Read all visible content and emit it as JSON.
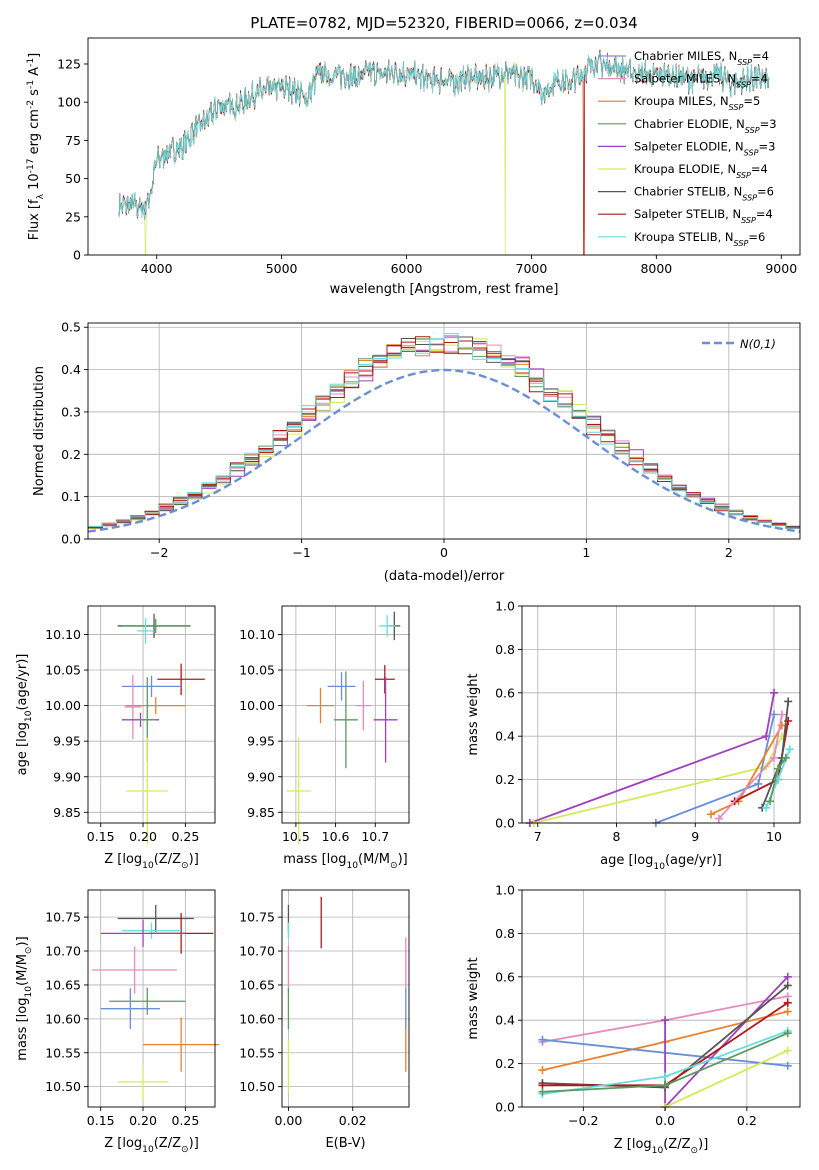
{
  "colors": {
    "c1": "#6a8fd8",
    "c2": "#e8822c",
    "c3": "#5a9a63",
    "c4": "#a03fbf",
    "c5": "#e889c0",
    "c6": "#555555",
    "c7": "#d4ea5c",
    "c8": "#66dede",
    "c9": "#b01818",
    "spec_Chabrier_MILES": "#9e7fd0",
    "spec_Salpeter_MILES": "#e889c0",
    "spec_Kroupa_MILES": "#e07c28",
    "spec_Chabrier_ELODIE": "#5a9a63",
    "spec_Salpeter_ELODIE": "#a03fbf",
    "spec_Kroupa_ELODIE": "#d4ea5c",
    "spec_Chabrier_STELIB": "#555555",
    "spec_Salpeter_STELIB": "#b01818",
    "spec_Kroupa_STELIB": "#66dede",
    "normal_curve": "#6a8fd8"
  },
  "chart_data": [
    {
      "id": "spectrum",
      "type": "line",
      "title": "PLATE=0782, MJD=52320, FIBERID=0066, z=0.034",
      "xlabel": "wavelength [Angstrom, rest frame]",
      "ylabel": "Flux [f$_\\lambda 10^{-17}$ erg cm$^{-2}$ s$^{-1}$ A$^{-1}$]",
      "xlim": [
        3450,
        9150
      ],
      "ylim": [
        0,
        142
      ],
      "xticks": [
        "4000",
        "5000",
        "6000",
        "7000",
        "8000",
        "9000"
      ],
      "yticks": [
        "0",
        "25",
        "50",
        "75",
        "100",
        "125"
      ],
      "grid": false,
      "legend_position": "top-right",
      "x": [
        3700,
        3800,
        3900,
        3950,
        4000,
        4100,
        4200,
        4300,
        4400,
        4500,
        4600,
        4700,
        4800,
        4900,
        5000,
        5100,
        5200,
        5300,
        5400,
        5500,
        5600,
        5700,
        5800,
        5900,
        6000,
        6100,
        6200,
        6300,
        6400,
        6500,
        6600,
        6700,
        6800,
        6900,
        7000,
        7100,
        7200,
        7300,
        7400,
        7500,
        7600,
        7700,
        7800,
        7900,
        8000,
        8100,
        8200,
        8300,
        8400,
        8500,
        8600,
        8700,
        8800,
        8900
      ],
      "y": [
        32,
        33,
        30,
        40,
        62,
        68,
        70,
        82,
        88,
        98,
        97,
        100,
        106,
        108,
        110,
        108,
        102,
        120,
        117,
        118,
        116,
        120,
        118,
        120,
        118,
        117,
        114,
        115,
        113,
        117,
        115,
        117,
        120,
        116,
        117,
        105,
        115,
        112,
        118,
        126,
        124,
        122,
        120,
        118,
        117,
        118,
        116,
        115,
        117,
        118,
        112,
        114,
        116,
        114
      ],
      "series": [
        {
          "name": "Chabrier MILES, N$_{SSP}$=4",
          "color_key": "spec_Chabrier_MILES"
        },
        {
          "name": "Salpeter MILES, N$_{SSP}$=4",
          "color_key": "spec_Salpeter_MILES"
        },
        {
          "name": "Kroupa MILES, N$_{SSP}$=5",
          "color_key": "spec_Kroupa_MILES"
        },
        {
          "name": "Chabrier ELODIE, N$_{SSP}$=3",
          "color_key": "spec_Chabrier_ELODIE"
        },
        {
          "name": "Salpeter ELODIE, N$_{SSP}$=3",
          "color_key": "spec_Salpeter_ELODIE"
        },
        {
          "name": "Kroupa ELODIE, N$_{SSP}$=4",
          "color_key": "spec_Kroupa_ELODIE"
        },
        {
          "name": "Chabrier STELIB, N$_{SSP}$=6",
          "color_key": "spec_Chabrier_STELIB"
        },
        {
          "name": "Salpeter STELIB, N$_{SSP}$=4",
          "color_key": "spec_Salpeter_STELIB"
        },
        {
          "name": "Kroupa STELIB, N$_{SSP}$=6",
          "color_key": "spec_Kroupa_STELIB"
        }
      ],
      "dropouts": [
        {
          "series": "Kroupa ELODIE, N$_{SSP}$=4",
          "x": 3910
        },
        {
          "series": "Kroupa ELODIE, N$_{SSP}$=4",
          "x": 6790
        },
        {
          "series": "Kroupa MILES, N$_{SSP}$=5",
          "x": 7420
        },
        {
          "series": "Salpeter STELIB, N$_{SSP}$=4",
          "x": 7420
        }
      ]
    },
    {
      "id": "residuals",
      "type": "line",
      "xlabel": "(data-model)/error",
      "ylabel": "Normed distribution",
      "xlim": [
        -2.5,
        2.5
      ],
      "ylim": [
        0,
        0.51
      ],
      "xticks": [
        "−2",
        "−1",
        "0",
        "1",
        "2"
      ],
      "yticks": [
        "0.0",
        "0.1",
        "0.2",
        "0.3",
        "0.4",
        "0.5"
      ],
      "grid": true,
      "legend_position": "top-right",
      "bin_width": 0.1,
      "series": [
        {
          "name": "$\\mathcal{N}(0,1)$",
          "style": "dashed",
          "color_key": "normal_curve"
        }
      ]
    },
    {
      "id": "z_vs_age",
      "type": "scatter",
      "xlabel": "Z [log$_{10}$(Z/Z$_\\odot$)]",
      "ylabel": "age  [log$_{10}$(age/yr)]",
      "xlim": [
        0.135,
        0.285
      ],
      "ylim": [
        9.835,
        10.14
      ],
      "xticks": [
        "0.15",
        "0.20",
        "0.25"
      ],
      "yticks": [
        "9.85",
        "9.90",
        "9.95",
        "10.00",
        "10.05",
        "10.10"
      ],
      "grid": true,
      "points": [
        {
          "x": 0.213,
          "y": 10.112,
          "xerr": 0.043,
          "yerr": 0.017,
          "c": "c6"
        },
        {
          "x": 0.215,
          "y": 10.112,
          "xerr": 0.04,
          "yerr": 0.01,
          "c": "c3"
        },
        {
          "x": 0.203,
          "y": 10.105,
          "xerr": 0.01,
          "yerr": 0.018,
          "c": "c8"
        },
        {
          "x": 0.245,
          "y": 10.037,
          "xerr": 0.028,
          "yerr": 0.022,
          "c": "c9"
        },
        {
          "x": 0.21,
          "y": 10.027,
          "xerr": 0.035,
          "yerr": 0.015,
          "c": "c1"
        },
        {
          "x": 0.215,
          "y": 10.0,
          "xerr": 0.035,
          "yerr": 0.012,
          "c": "c2"
        },
        {
          "x": 0.188,
          "y": 9.998,
          "xerr": 0.01,
          "yerr": 0.045,
          "c": "c5"
        },
        {
          "x": 0.197,
          "y": 9.98,
          "xerr": 0.022,
          "yerr": 0.01,
          "c": "c4"
        },
        {
          "x": 0.205,
          "y": 9.98,
          "xerr": 0.01,
          "yerr": 0.06,
          "c": "c3"
        },
        {
          "x": 0.205,
          "y": 9.88,
          "xerr": 0.025,
          "yerr": 0.075,
          "c": "c7"
        }
      ]
    },
    {
      "id": "mass_vs_age",
      "type": "scatter",
      "xlabel": "mass [log$_{10}$(M/M$_\\odot$)]",
      "ylim": [
        9.835,
        10.14
      ],
      "xlim": [
        10.465,
        10.785
      ],
      "xticks": [
        "10.5",
        "10.6",
        "10.7"
      ],
      "yticks": [
        "9.85",
        "9.90",
        "9.95",
        "10.00",
        "10.05",
        "10.10"
      ],
      "grid": true,
      "points": [
        {
          "x": 10.748,
          "y": 10.112,
          "xerr": 0.015,
          "yerr": 0.02,
          "c": "c6"
        },
        {
          "x": 10.73,
          "y": 10.112,
          "xerr": 0.02,
          "yerr": 0.015,
          "c": "c8"
        },
        {
          "x": 10.724,
          "y": 10.037,
          "xerr": 0.025,
          "yerr": 0.02,
          "c": "c9"
        },
        {
          "x": 10.615,
          "y": 10.027,
          "xerr": 0.035,
          "yerr": 0.02,
          "c": "c1"
        },
        {
          "x": 10.562,
          "y": 10.0,
          "xerr": 0.035,
          "yerr": 0.025,
          "c": "c2"
        },
        {
          "x": 10.67,
          "y": 10.0,
          "xerr": 0.02,
          "yerr": 0.035,
          "c": "c5"
        },
        {
          "x": 10.626,
          "y": 9.98,
          "xerr": 0.03,
          "yerr": 0.068,
          "c": "c3"
        },
        {
          "x": 10.726,
          "y": 9.98,
          "xerr": 0.03,
          "yerr": 0.06,
          "c": "c4"
        },
        {
          "x": 10.507,
          "y": 9.88,
          "xerr": 0.03,
          "yerr": 0.075,
          "c": "c7"
        }
      ]
    },
    {
      "id": "age_vs_massweight",
      "type": "line",
      "xlabel": "age  [log$_{10}$(age/yr)]",
      "ylabel": "mass weight",
      "xlim": [
        6.8,
        10.33
      ],
      "ylim": [
        0,
        1.0
      ],
      "xticks": [
        "7",
        "8",
        "9",
        "10"
      ],
      "yticks": [
        "0.0",
        "0.2",
        "0.4",
        "0.6",
        "0.8",
        "1.0"
      ],
      "grid": true,
      "series": [
        {
          "c": "c4",
          "x": [
            6.9,
            9.9,
            10.0
          ],
          "y": [
            0.0,
            0.4,
            0.6
          ]
        },
        {
          "c": "c7",
          "x": [
            6.95,
            9.9,
            10.1
          ],
          "y": [
            0.0,
            0.26,
            0.4
          ]
        },
        {
          "c": "c1",
          "x": [
            8.5,
            9.8,
            10.0
          ],
          "y": [
            0.0,
            0.18,
            0.5
          ]
        },
        {
          "c": "c2",
          "x": [
            9.2,
            9.55,
            10.1
          ],
          "y": [
            0.04,
            0.1,
            0.45
          ]
        },
        {
          "c": "c9",
          "x": [
            9.5,
            10.05,
            10.18
          ],
          "y": [
            0.1,
            0.2,
            0.47
          ]
        },
        {
          "c": "c6",
          "x": [
            9.85,
            10.1,
            10.18
          ],
          "y": [
            0.07,
            0.3,
            0.56
          ]
        },
        {
          "c": "c8",
          "x": [
            9.9,
            10.05,
            10.2
          ],
          "y": [
            0.07,
            0.2,
            0.34
          ]
        },
        {
          "c": "c3",
          "x": [
            9.95,
            10.05,
            10.15
          ],
          "y": [
            0.1,
            0.25,
            0.3
          ]
        },
        {
          "c": "c5",
          "x": [
            9.3,
            10.0,
            10.1
          ],
          "y": [
            0.02,
            0.3,
            0.5
          ]
        }
      ]
    },
    {
      "id": "z_vs_mass",
      "type": "scatter",
      "xlabel": "Z [log$_{10}$(Z/Z$_\\odot$)]",
      "ylabel": "mass [log$_{10}$(M/M$_\\odot$)]",
      "xlim": [
        0.135,
        0.285
      ],
      "ylim": [
        10.47,
        10.79
      ],
      "xticks": [
        "0.15",
        "0.20",
        "0.25"
      ],
      "yticks": [
        "10.50",
        "10.55",
        "10.60",
        "10.65",
        "10.70",
        "10.75"
      ],
      "grid": true,
      "points": [
        {
          "x": 0.215,
          "y": 10.748,
          "xerr": 0.045,
          "yerr": 0.02,
          "c": "c6"
        },
        {
          "x": 0.245,
          "y": 10.726,
          "xerr": 0.038,
          "yerr": 0.03,
          "c": "c9"
        },
        {
          "x": 0.21,
          "y": 10.73,
          "xerr": 0.035,
          "yerr": 0.012,
          "c": "c8"
        },
        {
          "x": 0.2,
          "y": 10.726,
          "xerr": 0.05,
          "yerr": 0.02,
          "c": "c4"
        },
        {
          "x": 0.19,
          "y": 10.672,
          "xerr": 0.05,
          "yerr": 0.035,
          "c": "c5"
        },
        {
          "x": 0.205,
          "y": 10.626,
          "xerr": 0.045,
          "yerr": 0.02,
          "c": "c3"
        },
        {
          "x": 0.185,
          "y": 10.615,
          "xerr": 0.035,
          "yerr": 0.03,
          "c": "c1"
        },
        {
          "x": 0.245,
          "y": 10.562,
          "xerr": 0.045,
          "yerr": 0.04,
          "c": "c2"
        },
        {
          "x": 0.2,
          "y": 10.507,
          "xerr": 0.03,
          "yerr": 0.025,
          "c": "c7"
        }
      ]
    },
    {
      "id": "ebv_vs_mass",
      "type": "scatter",
      "xlabel": "E(B-V)",
      "xlim": [
        -0.002,
        0.0375
      ],
      "ylim": [
        10.47,
        10.79
      ],
      "xticks": [
        "0.00",
        "0.02"
      ],
      "yticks": [
        "10.50",
        "10.55",
        "10.60",
        "10.65",
        "10.70",
        "10.75"
      ],
      "grid": true,
      "points": [
        {
          "x": 0.0,
          "y": 10.748,
          "xerr": 0,
          "yerr": 0.02,
          "c": "c6"
        },
        {
          "x": 0.0,
          "y": 10.73,
          "xerr": 0,
          "yerr": 0.012,
          "c": "c8"
        },
        {
          "x": 0.0,
          "y": 10.672,
          "xerr": 0,
          "yerr": 0.035,
          "c": "c5"
        },
        {
          "x": 0.0,
          "y": 10.615,
          "xerr": 0,
          "yerr": 0.03,
          "c": "c3"
        },
        {
          "x": 0.0,
          "y": 10.53,
          "xerr": 0,
          "yerr": 0.04,
          "c": "c7"
        },
        {
          "x": 0.0102,
          "y": 10.742,
          "xerr": 0,
          "yerr": 0.038,
          "c": "c9"
        },
        {
          "x": 0.0365,
          "y": 10.68,
          "xerr": 0,
          "yerr": 0.04,
          "c": "c5"
        },
        {
          "x": 0.0365,
          "y": 10.562,
          "xerr": 0,
          "yerr": 0.04,
          "c": "c2"
        },
        {
          "x": 0.0365,
          "y": 10.615,
          "xerr": 0,
          "yerr": 0.03,
          "c": "c1"
        }
      ]
    },
    {
      "id": "z_vs_massweight",
      "type": "line",
      "xlabel": "Z [log$_{10}$(Z/Z$_\\odot$)]",
      "ylabel": "mass weight",
      "xlim": [
        -0.35,
        0.33
      ],
      "ylim": [
        0,
        1.0
      ],
      "xticks": [
        "−0.2",
        "0.0",
        "0.2"
      ],
      "yticks": [
        "0.0",
        "0.2",
        "0.4",
        "0.6",
        "0.8",
        "1.0"
      ],
      "grid": true,
      "series": [
        {
          "c": "c5",
          "x": [
            -0.3,
            0.0,
            0.3
          ],
          "y": [
            0.3,
            0.4,
            0.51
          ]
        },
        {
          "c": "c2",
          "x": [
            -0.3,
            0.0,
            0.3
          ],
          "y": [
            0.17,
            0.3,
            0.44
          ]
        },
        {
          "c": "c1",
          "x": [
            -0.3,
            0.3
          ],
          "y": [
            0.31,
            0.19
          ]
        },
        {
          "c": "c4",
          "x": [
            0.0,
            0.0,
            0.3
          ],
          "y": [
            0.4,
            0.0,
            0.6
          ]
        },
        {
          "c": "c6",
          "x": [
            -0.3,
            0.0,
            0.3
          ],
          "y": [
            0.11,
            0.09,
            0.56
          ]
        },
        {
          "c": "c9",
          "x": [
            -0.3,
            0.0,
            0.3
          ],
          "y": [
            0.1,
            0.1,
            0.48
          ]
        },
        {
          "c": "c8",
          "x": [
            -0.3,
            0.0,
            0.3
          ],
          "y": [
            0.06,
            0.14,
            0.35
          ]
        },
        {
          "c": "c7",
          "x": [
            0.0,
            0.3
          ],
          "y": [
            0.0,
            0.26
          ]
        },
        {
          "c": "c3",
          "x": [
            -0.3,
            0.0,
            0.3
          ],
          "y": [
            0.07,
            0.1,
            0.34
          ]
        }
      ]
    }
  ]
}
